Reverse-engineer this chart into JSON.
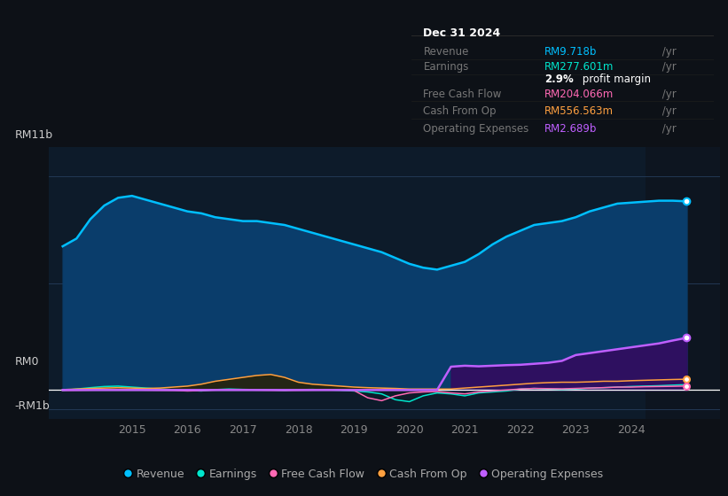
{
  "bg_color": "#0d1117",
  "plot_bg_color": "#0d1b2a",
  "grid_color": "#263d5c",
  "text_color": "#888888",
  "ylim": [
    -1500000000.0,
    12500000000.0
  ],
  "xlim": [
    2013.5,
    2025.6
  ],
  "xticks": [
    2015,
    2016,
    2017,
    2018,
    2019,
    2020,
    2021,
    2022,
    2023,
    2024
  ],
  "ytick_vals": [
    -1000000000.0,
    0,
    11000000000.0
  ],
  "ytick_labels": [
    "-RM1b",
    "RM0",
    "RM11b"
  ],
  "revenue_color": "#00bfff",
  "revenue_fill_color": "#0a3d6b",
  "earnings_color": "#00e5cc",
  "earnings_fill_color": "#0d4a3a",
  "fcf_color": "#ff69b4",
  "cashop_color": "#ffa040",
  "cashop_fill_color": "#2a2000",
  "opex_color": "#bf5fff",
  "opex_fill_color": "#2e1060",
  "highlight_start": 2020.5,
  "legend": [
    {
      "label": "Revenue",
      "color": "#00bfff"
    },
    {
      "label": "Earnings",
      "color": "#00e5cc"
    },
    {
      "label": "Free Cash Flow",
      "color": "#ff69b4"
    },
    {
      "label": "Cash From Op",
      "color": "#ffa040"
    },
    {
      "label": "Operating Expenses",
      "color": "#bf5fff"
    }
  ],
  "info_box": {
    "title": "Dec 31 2024",
    "rows": [
      {
        "label": "Revenue",
        "value": "RM9.718b",
        "value_color": "#00bfff"
      },
      {
        "label": "Earnings",
        "value": "RM277.601m",
        "value_color": "#00e5cc"
      },
      {
        "label": "",
        "value": "2.9% profit margin",
        "value_color": "#ffffff"
      },
      {
        "label": "Free Cash Flow",
        "value": "RM204.066m",
        "value_color": "#ff69b4"
      },
      {
        "label": "Cash From Op",
        "value": "RM556.563m",
        "value_color": "#ffa040"
      },
      {
        "label": "Operating Expenses",
        "value": "RM2.689b",
        "value_color": "#bf5fff"
      }
    ]
  }
}
